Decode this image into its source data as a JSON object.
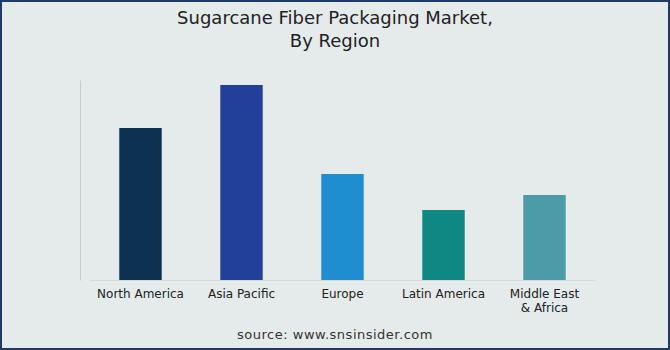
{
  "chart_data": {
    "type": "bar",
    "title": "Sugarcane Fiber Packaging Market,\nBy Region",
    "categories": [
      "North America",
      "Asia Pacific",
      "Europe",
      "Latin America",
      "Middle East\n& Africa"
    ],
    "values": [
      152,
      195,
      106,
      70,
      85
    ],
    "colors": [
      "#0d3251",
      "#22409a",
      "#1f8ed1",
      "#0f8884",
      "#4b9ba9"
    ],
    "ylim": [
      0,
      200
    ],
    "yticks": [],
    "tick_labels": "x",
    "grid": false,
    "annotations": [
      "source: www.snsinsider.com"
    ]
  }
}
